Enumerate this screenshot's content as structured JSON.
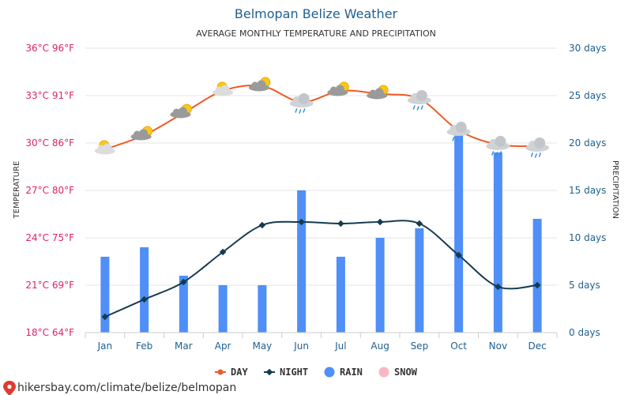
{
  "chart_data": {
    "type": "line",
    "title": "Belmopan Belize Weather",
    "subtitle": "AVERAGE MONTHLY TEMPERATURE AND PRECIPITATION",
    "categories": [
      "Jan",
      "Feb",
      "Mar",
      "Apr",
      "May",
      "Jun",
      "Jul",
      "Aug",
      "Sep",
      "Oct",
      "Nov",
      "Dec"
    ],
    "left_axis": {
      "title": "TEMPERATURE",
      "ylim": [
        18,
        36
      ],
      "ticks": [
        "18°C 64°F",
        "21°C 69°F",
        "24°C 75°F",
        "27°C 80°F",
        "30°C 86°F",
        "33°C 91°F",
        "36°C 96°F"
      ]
    },
    "right_axis": {
      "title": "PRECIPITATION",
      "ylim": [
        0,
        30
      ],
      "ticks": [
        "0 days",
        "5 days",
        "10 days",
        "15 days",
        "20 days",
        "25 days",
        "30 days"
      ]
    },
    "series": [
      {
        "name": "DAY",
        "axis": "left",
        "color": "#f05a24",
        "values": [
          29.6,
          30.5,
          31.9,
          33.3,
          33.6,
          32.6,
          33.3,
          33.1,
          32.8,
          30.8,
          29.9,
          29.8
        ]
      },
      {
        "name": "NIGHT",
        "axis": "left",
        "color": "#153b50",
        "values": [
          19.0,
          20.1,
          21.2,
          23.1,
          24.8,
          25.0,
          24.9,
          25.0,
          24.9,
          22.9,
          20.9,
          21.0
        ]
      },
      {
        "name": "RAIN",
        "axis": "right",
        "color": "#4f8ff7",
        "values": [
          8,
          9,
          6,
          5,
          5,
          15,
          8,
          10,
          11,
          21,
          19,
          12
        ]
      },
      {
        "name": "SNOW",
        "axis": "right",
        "color": "#f9b7c6",
        "values": [
          0,
          0,
          0,
          0,
          0,
          0,
          0,
          0,
          0,
          0,
          0,
          0
        ]
      }
    ],
    "weather_icons": [
      "sun-cloud",
      "cloud-sun",
      "cloud-sun",
      "sun-cloud",
      "cloud-sun",
      "rain-cloud",
      "cloud-sun",
      "cloud-sun",
      "rain-cloud",
      "rain-cloud",
      "rain-cloud",
      "rain-cloud"
    ],
    "grid": true,
    "legend": "bottom"
  },
  "source": "hikersbay.com/climate/belize/belmopan",
  "source_icon": "map-pin-icon"
}
